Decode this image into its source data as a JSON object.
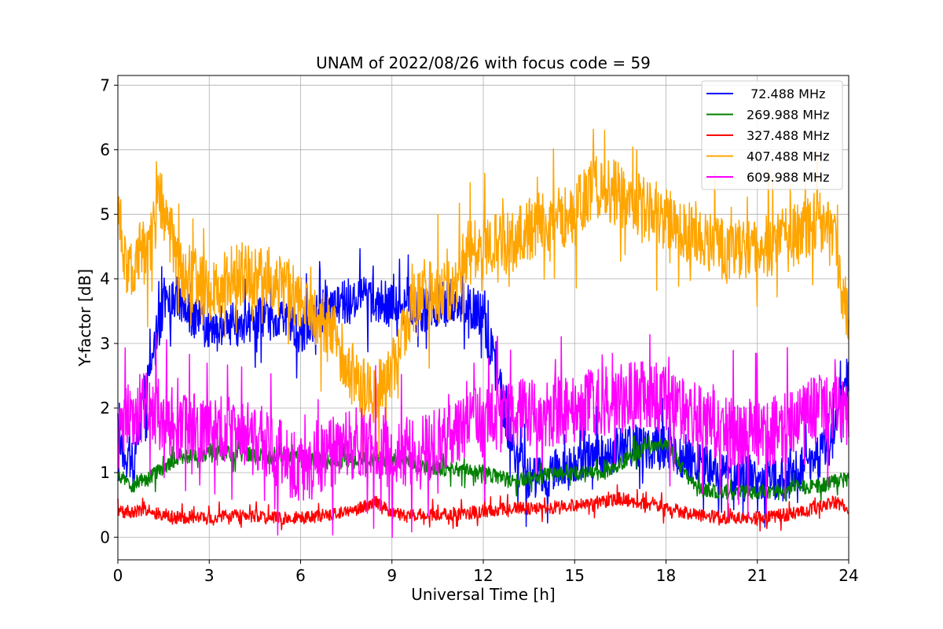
{
  "chart_data": {
    "type": "line",
    "title": "UNAM of 2022/08/26 with focus code = 59",
    "xlabel": "Universal Time [h]",
    "ylabel": "Y-factor [dB]",
    "xlim": [
      0,
      24
    ],
    "ylim": [
      -0.35,
      7.15
    ],
    "xticks": [
      0,
      3,
      6,
      9,
      12,
      15,
      18,
      21,
      24
    ],
    "yticks": [
      0,
      1,
      2,
      3,
      4,
      5,
      6,
      7
    ],
    "grid": true,
    "legend_position": "top-right",
    "series": [
      {
        "name": " 72.488 MHz",
        "color": "#0000ff",
        "x": [
          0,
          0.5,
          1,
          1.5,
          2,
          2.5,
          3,
          4,
          5,
          6,
          7,
          8,
          9,
          10,
          10.5,
          11,
          11.5,
          12,
          12.5,
          13,
          13.5,
          14,
          15,
          16,
          17,
          18,
          19,
          20,
          21,
          22,
          23,
          23.5,
          24
        ],
        "y": [
          1.4,
          1.1,
          2.5,
          3.6,
          3.7,
          3.4,
          3.2,
          3.3,
          3.4,
          3.2,
          3.6,
          3.7,
          3.6,
          3.5,
          3.6,
          3.7,
          3.6,
          3.4,
          2.4,
          1.3,
          0.9,
          0.9,
          1.2,
          1.3,
          1.4,
          1.4,
          1.1,
          1.0,
          0.9,
          0.9,
          1.2,
          1.5,
          2.6
        ],
        "noise": 0.35
      },
      {
        "name": "269.988 MHz",
        "color": "#008000",
        "x": [
          0,
          0.5,
          1,
          2,
          3,
          4,
          5,
          6,
          7,
          8,
          9,
          10,
          11,
          12,
          13,
          14,
          15,
          16,
          17,
          18,
          19,
          20,
          21,
          22,
          23,
          24
        ],
        "y": [
          0.95,
          0.8,
          0.9,
          1.25,
          1.3,
          1.3,
          1.25,
          1.25,
          1.2,
          1.2,
          1.2,
          1.1,
          1.05,
          1.0,
          0.85,
          0.95,
          1.0,
          1.0,
          1.3,
          1.45,
          0.75,
          0.7,
          0.7,
          0.75,
          0.8,
          0.9
        ],
        "noise": 0.12
      },
      {
        "name": "327.488 MHz",
        "color": "#ff0000",
        "x": [
          0,
          1,
          2,
          3,
          4,
          5,
          6,
          7,
          8,
          8.5,
          9,
          10,
          11,
          12,
          13,
          14,
          15,
          16,
          16.5,
          17,
          18,
          19,
          20,
          21,
          22,
          23,
          23.5,
          24
        ],
        "y": [
          0.4,
          0.4,
          0.3,
          0.3,
          0.35,
          0.3,
          0.3,
          0.35,
          0.45,
          0.55,
          0.35,
          0.35,
          0.35,
          0.4,
          0.45,
          0.45,
          0.5,
          0.55,
          0.6,
          0.55,
          0.45,
          0.35,
          0.3,
          0.3,
          0.35,
          0.45,
          0.55,
          0.45
        ],
        "noise": 0.1
      },
      {
        "name": "407.488 MHz",
        "color": "#ffa500",
        "x": [
          0,
          0.3,
          0.7,
          1,
          1.4,
          2,
          3,
          4,
          5,
          6,
          7,
          7.5,
          8,
          8.5,
          9,
          9.5,
          10,
          11,
          11.5,
          12,
          13,
          14,
          15,
          15.5,
          16,
          16.5,
          17,
          17.5,
          18,
          19,
          20,
          21,
          22,
          23,
          23.5,
          24
        ],
        "y": [
          5.2,
          4.1,
          4.4,
          4.4,
          5.3,
          4.2,
          3.8,
          4.1,
          4.0,
          3.7,
          3.2,
          2.7,
          2.4,
          2.2,
          2.6,
          3.4,
          3.8,
          3.8,
          4.4,
          4.5,
          4.6,
          4.9,
          5.0,
          5.4,
          5.4,
          5.3,
          5.2,
          5.0,
          4.9,
          4.7,
          4.4,
          4.5,
          4.6,
          4.9,
          4.6,
          3.3
        ],
        "noise": 0.5
      },
      {
        "name": "609.988 MHz",
        "color": "#ff00ff",
        "x": [
          0,
          1,
          2,
          3,
          4,
          5,
          6,
          7,
          8,
          9,
          10,
          11,
          12,
          13,
          14,
          15,
          16,
          17,
          18,
          19,
          20,
          21,
          22,
          23,
          24
        ],
        "y": [
          1.9,
          2.0,
          1.7,
          1.7,
          1.6,
          1.4,
          1.0,
          1.3,
          1.5,
          1.3,
          1.4,
          1.6,
          1.8,
          1.9,
          1.9,
          2.0,
          2.1,
          2.2,
          2.1,
          1.9,
          1.6,
          1.6,
          1.7,
          2.0,
          2.0
        ],
        "noise": 0.55
      }
    ]
  }
}
